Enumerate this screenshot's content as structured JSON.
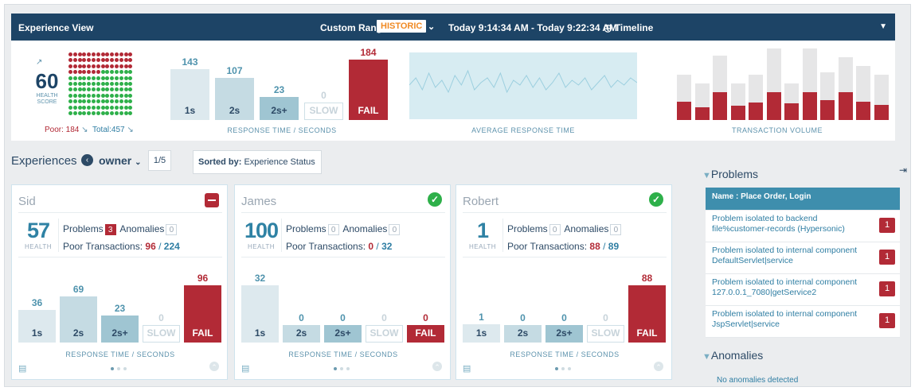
{
  "header": {
    "title": "Experience View",
    "custom_range": "Custom Range",
    "mode_badge": "HISTORIC",
    "time_range": "Today 9:14:34 AM - Today 9:22:34 AM",
    "timeline_label": "Timeline"
  },
  "summary": {
    "health_score": "60",
    "health_label_1": "HEALTH",
    "health_label_2": "SCORE",
    "poor_label": "Poor: 184",
    "total_label": "Total:457",
    "dots_total": 154,
    "dots_red": 49,
    "response": {
      "caption": "RESPONSE TIME / SECONDS",
      "buckets": [
        {
          "label": "1s",
          "value": 143
        },
        {
          "label": "2s",
          "value": 107
        },
        {
          "label": "2s+",
          "value": 23
        },
        {
          "label": "SLOW",
          "value": 0
        },
        {
          "label": "FAIL",
          "value": 184
        }
      ]
    },
    "avg_caption": "AVERAGE RESPONSE TIME",
    "avg_series": [
      0.55,
      0.7,
      0.45,
      0.8,
      0.5,
      0.65,
      0.4,
      0.75,
      0.55,
      0.85,
      0.45,
      0.6,
      0.7,
      0.5,
      0.8,
      0.4,
      0.65,
      0.55,
      0.75,
      0.5,
      0.7,
      0.45,
      0.6,
      0.8,
      0.5,
      0.65,
      0.55,
      0.7,
      0.45,
      0.6,
      0.75,
      0.5,
      0.65,
      0.55,
      0.7,
      0.6
    ],
    "volume_caption": "TRANSACTION VOLUME",
    "volume": {
      "total": [
        0.62,
        0.5,
        0.88,
        0.5,
        0.62,
        0.98,
        0.5,
        0.98,
        0.65,
        0.86,
        0.74,
        0.62
      ],
      "failed": [
        0.25,
        0.17,
        0.38,
        0.2,
        0.24,
        0.38,
        0.23,
        0.38,
        0.27,
        0.38,
        0.25,
        0.21
      ]
    }
  },
  "experiences": {
    "title": "Experiences",
    "owner": "owner",
    "page": "1/5",
    "sort_prefix": "Sorted by:",
    "sort_value": "Experience Status"
  },
  "cards": [
    {
      "name": "Sid",
      "status": "fail",
      "health": "57",
      "health_label": "HEALTH",
      "problems_label": "Problems",
      "problems": "3",
      "anomalies_label": "Anomalies",
      "anomalies": "0",
      "poor_label": "Poor Transactions:",
      "poor": "96",
      "sep": "/",
      "total": "224",
      "caption": "RESPONSE TIME / SECONDS",
      "buckets": [
        {
          "label": "1s",
          "value": 36
        },
        {
          "label": "2s",
          "value": 69
        },
        {
          "label": "2s+",
          "value": 23
        },
        {
          "label": "SLOW",
          "value": 0
        },
        {
          "label": "FAIL",
          "value": 96
        }
      ]
    },
    {
      "name": "James",
      "status": "ok",
      "health": "100",
      "health_label": "HEALTH",
      "problems_label": "Problems",
      "problems": "0",
      "anomalies_label": "Anomalies",
      "anomalies": "0",
      "poor_label": "Poor Transactions:",
      "poor": "0",
      "sep": "/",
      "total": "32",
      "caption": "RESPONSE TIME / SECONDS",
      "buckets": [
        {
          "label": "1s",
          "value": 32
        },
        {
          "label": "2s",
          "value": 0
        },
        {
          "label": "2s+",
          "value": 0
        },
        {
          "label": "SLOW",
          "value": 0
        },
        {
          "label": "FAIL",
          "value": 0
        }
      ]
    },
    {
      "name": "Robert",
      "status": "ok",
      "health": "1",
      "health_label": "HEALTH",
      "problems_label": "Problems",
      "problems": "0",
      "anomalies_label": "Anomalies",
      "anomalies": "0",
      "poor_label": "Poor Transactions:",
      "poor": "88",
      "sep": "/",
      "total": "89",
      "caption": "RESPONSE TIME / SECONDS",
      "buckets": [
        {
          "label": "1s",
          "value": 1
        },
        {
          "label": "2s",
          "value": 0
        },
        {
          "label": "2s+",
          "value": 0
        },
        {
          "label": "SLOW",
          "value": 0
        },
        {
          "label": "FAIL",
          "value": 88
        }
      ]
    }
  ],
  "problems": {
    "title": "Problems",
    "name_header": "Name : Place Order, Login",
    "items": [
      {
        "text": "Problem isolated to backend file%customer-records (Hypersonic)",
        "count": "1"
      },
      {
        "text": "Problem isolated to internal component DefaultServlet|service",
        "count": "1"
      },
      {
        "text": "Problem isolated to internal component 127.0.0.1_7080|getService2",
        "count": "1"
      },
      {
        "text": "Problem isolated to internal component JspServlet|service",
        "count": "1"
      }
    ]
  },
  "anomalies": {
    "title": "Anomalies",
    "empty": "No anomalies detected"
  },
  "colors": {
    "navy": "#1d4466",
    "fail": "#b22a36",
    "b1": "#dde9ee",
    "b2": "#c5dbe3",
    "b3": "#9fc5d2",
    "accent": "#2f82a4",
    "ok": "#2eb04a",
    "hist": "#f08a24"
  }
}
